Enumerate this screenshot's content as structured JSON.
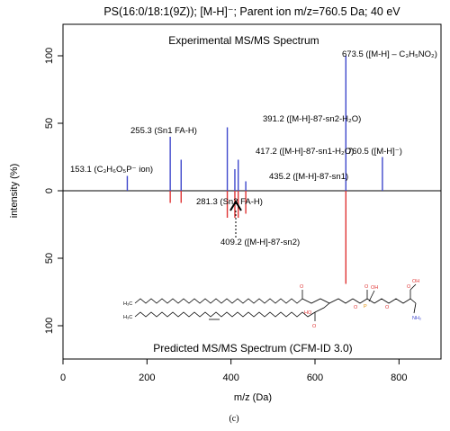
{
  "chart_data": {
    "type": "bar",
    "title": "PS(16:0/18:1(9Z)); [M-H]⁻; Parent ion m/z=760.5 Da; 40 eV",
    "xlabel": "m/z (Da)",
    "ylabel": "intensity (%)",
    "xlim": [
      0,
      900
    ],
    "ylim_top": [
      0,
      120
    ],
    "ylim_bottom": [
      0,
      125
    ],
    "x_ticks": [
      0,
      200,
      400,
      600,
      800
    ],
    "y_ticks_top": [
      0,
      50,
      100
    ],
    "y_ticks_bottom": [
      50,
      100
    ],
    "grid": false,
    "experimental_label": "Experimental MS/MS Spectrum",
    "predicted_label": "Predicted MS/MS Spectrum (CFM-ID 3.0)",
    "series": [
      {
        "name": "Experimental MS/MS Spectrum",
        "color": "#3f48cc",
        "direction": "up",
        "x": [
          153.1,
          255.3,
          281.3,
          391.2,
          409.2,
          417.2,
          435.2,
          673.5,
          760.5
        ],
        "y": [
          11,
          40,
          23,
          47,
          16,
          23,
          7,
          100,
          25
        ]
      },
      {
        "name": "Predicted MS/MS Spectrum (CFM-ID 3.0)",
        "color": "#e03535",
        "direction": "down",
        "x": [
          255.3,
          281.3,
          391.2,
          409.2,
          417.2,
          435.2,
          673.5
        ],
        "y": [
          9,
          9,
          20,
          20,
          20,
          17,
          69
        ]
      }
    ],
    "annotations": [
      {
        "text": "153.1 (C₃H₆O₅P⁻ ion)",
        "x": 153.1
      },
      {
        "text": "255.3 (Sn1 FA-H)",
        "x": 255.3
      },
      {
        "text": "281.3 (Sn2 FA-H)",
        "x": 281.3
      },
      {
        "text": "391.2 ([M-H]-87-sn2-H₂O)",
        "x": 391.2
      },
      {
        "text": "417.2 ([M-H]-87-sn1-H₂O)",
        "x": 417.2
      },
      {
        "text": "435.2 ([M-H]-87-sn1)",
        "x": 435.2
      },
      {
        "text": "409.2 ([M-H]-87-sn2)",
        "x": 409.2
      },
      {
        "text": "673.5 ([M-H] – C₃H₅NO₂)",
        "x": 673.5
      },
      {
        "text": "760.5 ([M-H]⁻)",
        "x": 760.5
      }
    ],
    "structure_labels": {
      "o": "O",
      "p": "P",
      "oh": "OH",
      "h3c": "H₃C",
      "nh2": "NH₂",
      "ho": "HO"
    }
  },
  "caption": "(c)"
}
